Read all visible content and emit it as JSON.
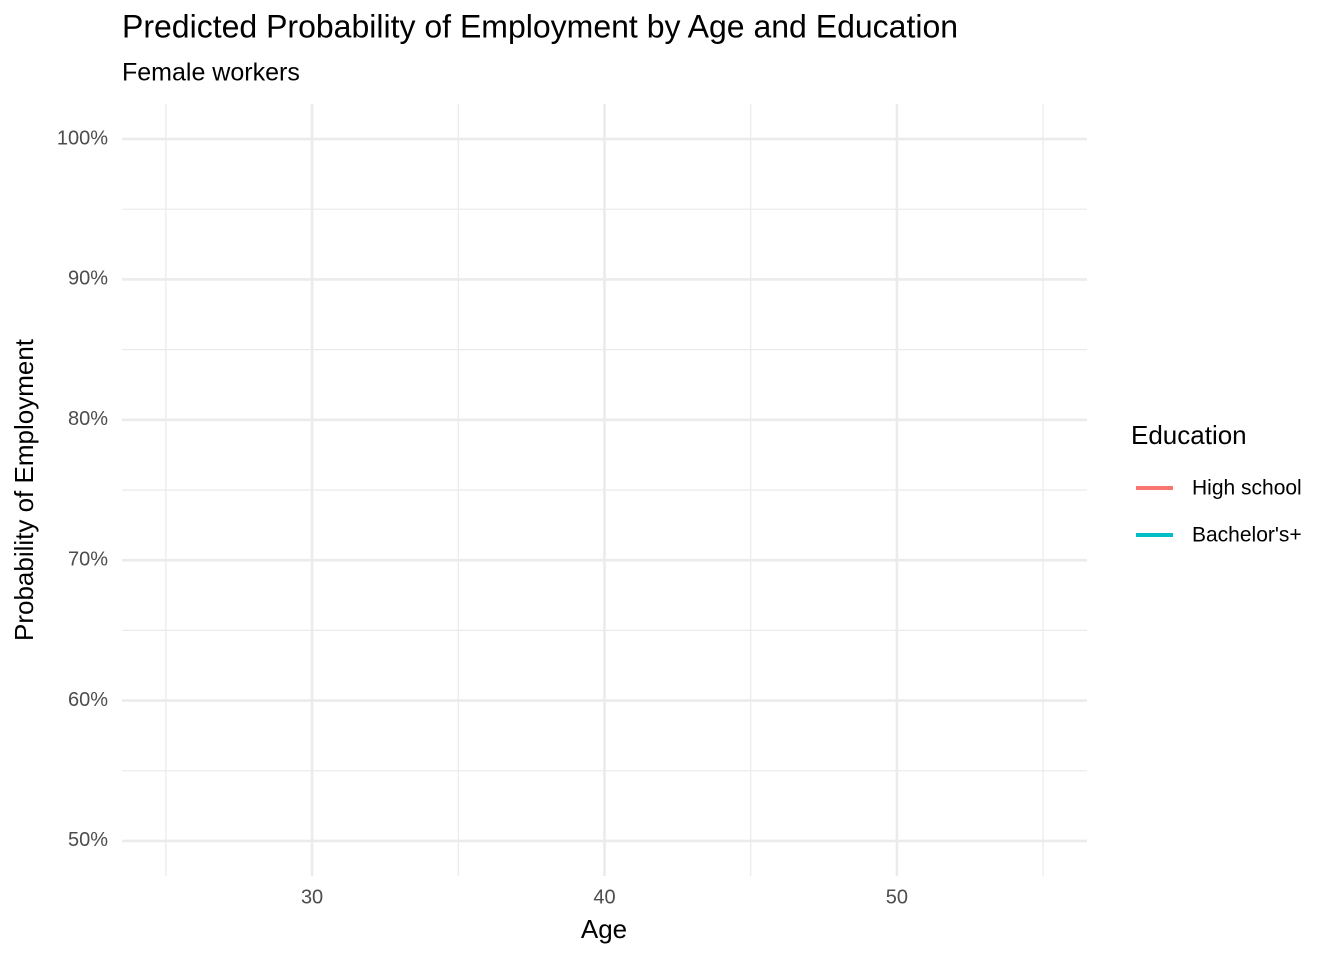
{
  "chart_data": {
    "type": "line",
    "title": "Predicted Probability of Employment by Age and Education",
    "subtitle": "Female workers",
    "x_label": "Age",
    "y_label": "Probability of Employment",
    "legend_title": "Education",
    "legend_position": "right",
    "grid": true,
    "x": [],
    "series": [
      {
        "name": "High school",
        "color": "#f8766d",
        "values": []
      },
      {
        "name": "Bachelor's+",
        "color": "#00bfc4",
        "values": []
      }
    ],
    "xlim": [
      23.5,
      56.5
    ],
    "xticks": [
      30,
      40,
      50
    ],
    "xminorticks": [
      25,
      35,
      45,
      55
    ],
    "ylim": [
      47.5,
      102.5
    ],
    "yticks": [
      {
        "value": 50,
        "label": "50%"
      },
      {
        "value": 60,
        "label": "60%"
      },
      {
        "value": 70,
        "label": "70%"
      },
      {
        "value": 80,
        "label": "80%"
      },
      {
        "value": 90,
        "label": "90%"
      },
      {
        "value": 100,
        "label": "100%"
      }
    ],
    "yminorticks": [
      55,
      65,
      75,
      85,
      95
    ]
  }
}
